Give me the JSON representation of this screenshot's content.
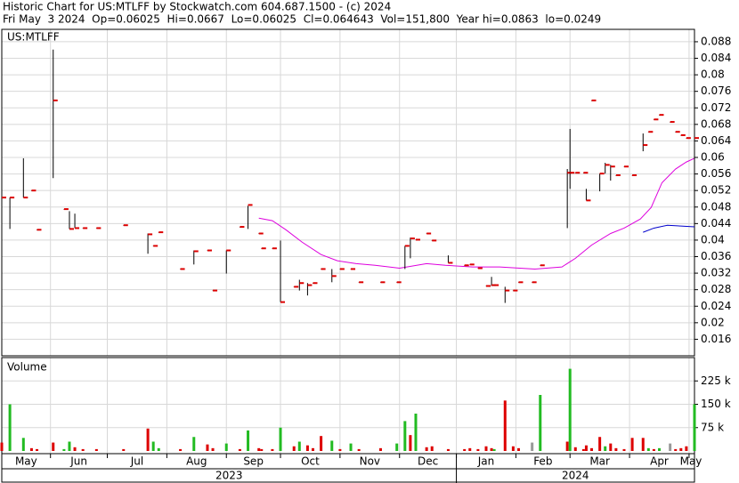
{
  "chart_data": {
    "type": "ohlc",
    "title": "Historic Chart for US:MTLFF by Stockwatch.com 604.687.1500 - (c) 2024",
    "subtitle": "Fri May  3 2024  Op=0.06025  Hi=0.0667  Lo=0.06025  Cl=0.064643  Vol=151,800  Year hi=0.0863  lo=0.0249",
    "symbol_label": "US:MTLFF",
    "volume_label": "Volume",
    "xlim": [
      0,
      256
    ],
    "xticks": [
      {
        "value": 0,
        "label": "May"
      },
      {
        "value": 18,
        "label": "Jun"
      },
      {
        "value": 39,
        "label": "Jul"
      },
      {
        "value": 61,
        "label": "Aug"
      },
      {
        "value": 83,
        "label": "Sep"
      },
      {
        "value": 103,
        "label": "Oct"
      },
      {
        "value": 125,
        "label": "Nov"
      },
      {
        "value": 147,
        "label": "Dec"
      },
      {
        "value": 168,
        "label": "Jan"
      },
      {
        "value": 190,
        "label": "Feb"
      },
      {
        "value": 210,
        "label": "Mar"
      },
      {
        "value": 232,
        "label": "Apr"
      },
      {
        "value": 254,
        "label": "May"
      }
    ],
    "years": [
      {
        "value": 0,
        "label": "2023"
      },
      {
        "value": 168,
        "label": "2024"
      }
    ],
    "ylim": [
      0.012,
      0.091
    ],
    "yticks": [
      0.016,
      0.02,
      0.024,
      0.028,
      0.032,
      0.036,
      0.04,
      0.044,
      0.048,
      0.052,
      0.056,
      0.06,
      0.064,
      0.068,
      0.072,
      0.076,
      0.08,
      0.084,
      0.088
    ],
    "grid": true,
    "range_color": "#000000",
    "close_color": "#dd0000",
    "x": [
      0,
      3,
      8,
      11,
      13,
      19,
      23,
      25,
      27,
      30,
      35,
      45,
      54,
      56,
      58,
      66,
      71,
      76,
      78,
      83,
      88,
      91,
      95,
      96,
      100,
      103,
      108,
      110,
      113,
      115,
      118,
      122,
      125,
      129,
      132,
      140,
      146,
      149,
      151,
      153,
      157,
      159,
      165,
      171,
      173,
      176,
      179,
      181,
      182,
      186,
      189,
      191,
      196,
      199,
      209,
      210,
      212,
      215,
      216,
      218,
      221,
      223,
      225,
      227,
      230,
      233,
      237,
      239,
      241,
      243,
      247,
      249,
      251,
      253,
      256
    ],
    "high": [
      0.0583,
      0.0503,
      0.0598,
      0.052,
      0.0425,
      0.0861,
      0.0475,
      0.047,
      0.0464,
      0.0429,
      0.0429,
      0.0436,
      0.0416,
      0.0386,
      0.0419,
      0.033,
      0.0375,
      0.0375,
      0.0278,
      0.0375,
      0.0432,
      0.0483,
      0.0416,
      0.038,
      0.038,
      0.0399,
      0.0287,
      0.0304,
      0.0296,
      0.0296,
      0.033,
      0.033,
      0.033,
      0.033,
      0.0298,
      0.0298,
      0.0298,
      0.0386,
      0.0406,
      0.0401,
      0.0416,
      0.0399,
      0.0363,
      0.0339,
      0.0341,
      0.0332,
      0.0289,
      0.0311,
      0.0291,
      0.0287,
      0.0278,
      0.0298,
      0.0298,
      0.0339,
      0.0572,
      0.0669,
      0.0563,
      0.0563,
      0.0524,
      0.0738,
      0.0561,
      0.0587,
      0.0582,
      0.0557,
      0.0578,
      0.0557,
      0.0658,
      0.0662,
      0.0692,
      0.0703,
      0.0686,
      0.0662,
      0.0654,
      0.0647,
      0.0662
    ],
    "low": [
      0.0496,
      0.0427,
      0.0503,
      0.052,
      0.0425,
      0.055,
      0.0475,
      0.0427,
      0.0429,
      0.0429,
      0.0429,
      0.0436,
      0.0367,
      0.0386,
      0.0419,
      0.033,
      0.0341,
      0.0375,
      0.0278,
      0.0319,
      0.0432,
      0.0427,
      0.0416,
      0.038,
      0.038,
      0.025,
      0.0287,
      0.0278,
      0.0266,
      0.0296,
      0.033,
      0.0298,
      0.033,
      0.033,
      0.0298,
      0.0298,
      0.0298,
      0.033,
      0.0356,
      0.0401,
      0.0416,
      0.0399,
      0.0345,
      0.0339,
      0.0341,
      0.0332,
      0.0289,
      0.0289,
      0.0291,
      0.0248,
      0.0278,
      0.0298,
      0.0298,
      0.0339,
      0.0429,
      0.0524,
      0.0563,
      0.0563,
      0.0496,
      0.0738,
      0.0518,
      0.0561,
      0.0544,
      0.0557,
      0.0578,
      0.0557,
      0.0615,
      0.0662,
      0.0692,
      0.0703,
      0.0686,
      0.0662,
      0.0654,
      0.0647,
      0.0593
    ],
    "close": [
      0.0503,
      0.0503,
      0.0503,
      0.052,
      0.0425,
      0.0738,
      0.0475,
      0.0427,
      0.0429,
      0.0429,
      0.0429,
      0.0436,
      0.0414,
      0.0386,
      0.0419,
      0.033,
      0.0373,
      0.0375,
      0.0278,
      0.0375,
      0.0432,
      0.0485,
      0.0416,
      0.038,
      0.038,
      0.025,
      0.0287,
      0.0296,
      0.0291,
      0.0296,
      0.033,
      0.0313,
      0.033,
      0.033,
      0.0298,
      0.0298,
      0.0298,
      0.0386,
      0.0404,
      0.0401,
      0.0416,
      0.0399,
      0.0345,
      0.0339,
      0.0341,
      0.0332,
      0.0289,
      0.0291,
      0.0291,
      0.0278,
      0.0278,
      0.0298,
      0.0298,
      0.0339,
      0.0563,
      0.0563,
      0.0563,
      0.0563,
      0.0496,
      0.0738,
      0.0561,
      0.0582,
      0.0578,
      0.0557,
      0.0578,
      0.0557,
      0.063,
      0.0662,
      0.0692,
      0.0703,
      0.0686,
      0.0662,
      0.0654,
      0.0647,
      0.0647
    ],
    "moving_averages": [
      {
        "color": "#dd00dd",
        "x": [
          95,
          100,
          105,
          111,
          118,
          124,
          131,
          138,
          147,
          157,
          164,
          174,
          184,
          197,
          207,
          212,
          218,
          225,
          230,
          236,
          240,
          244,
          249,
          253,
          256
        ],
        "values": [
          0.0453,
          0.0447,
          0.0425,
          0.0395,
          0.0365,
          0.035,
          0.0343,
          0.0339,
          0.0332,
          0.0343,
          0.0339,
          0.0335,
          0.0335,
          0.033,
          0.0335,
          0.0356,
          0.0388,
          0.0416,
          0.0429,
          0.0451,
          0.0479,
          0.0539,
          0.0572,
          0.0589,
          0.0598
        ]
      },
      {
        "color": "#0000cc",
        "x": [
          237,
          241,
          246,
          251,
          256
        ],
        "values": [
          0.0419,
          0.0429,
          0.0436,
          0.0434,
          0.0432
        ]
      }
    ],
    "volume": [
      27000,
      150000,
      42000,
      9000,
      6000,
      27000,
      6000,
      30000,
      12000,
      6000,
      6000,
      6000,
      72000,
      30000,
      9000,
      6000,
      45000,
      21000,
      9000,
      24000,
      6000,
      66000,
      9000,
      6000,
      6000,
      75000,
      15000,
      30000,
      18000,
      9000,
      48000,
      33000,
      6000,
      24000,
      6000,
      9000,
      24000,
      96000,
      51000,
      120000,
      12000,
      15000,
      6000,
      6000,
      9000,
      6000,
      15000,
      9000,
      6000,
      162000,
      15000,
      9000,
      27000,
      180000,
      30000,
      264000,
      12000,
      6000,
      18000,
      9000,
      45000,
      15000,
      24000,
      9000,
      6000,
      42000,
      42000,
      9000,
      6000,
      9000,
      24000,
      6000,
      9000,
      15000,
      150000
    ],
    "volume_colors": [
      "#dd0000",
      "#22bb22",
      "#22bb22",
      "#dd0000",
      "#dd0000",
      "#dd0000",
      "#22bb22",
      "#22bb22",
      "#dd0000",
      "#dd0000",
      "#dd0000",
      "#dd0000",
      "#dd0000",
      "#22bb22",
      "#22bb22",
      "#dd0000",
      "#22bb22",
      "#dd0000",
      "#dd0000",
      "#22bb22",
      "#dd0000",
      "#22bb22",
      "#dd0000",
      "#dd0000",
      "#dd0000",
      "#22bb22",
      "#dd0000",
      "#22bb22",
      "#dd0000",
      "#dd0000",
      "#dd0000",
      "#22bb22",
      "#dd0000",
      "#22bb22",
      "#dd0000",
      "#dd0000",
      "#22bb22",
      "#22bb22",
      "#dd0000",
      "#22bb22",
      "#dd0000",
      "#dd0000",
      "#dd0000",
      "#dd0000",
      "#dd0000",
      "#dd0000",
      "#dd0000",
      "#dd0000",
      "#22bb22",
      "#dd0000",
      "#dd0000",
      "#dd0000",
      "#999999",
      "#22bb22",
      "#dd0000",
      "#22bb22",
      "#dd0000",
      "#dd0000",
      "#dd0000",
      "#dd0000",
      "#dd0000",
      "#22bb22",
      "#dd0000",
      "#dd0000",
      "#dd0000",
      "#dd0000",
      "#dd0000",
      "#22bb22",
      "#dd0000",
      "#22bb22",
      "#999999",
      "#dd0000",
      "#dd0000",
      "#dd0000",
      "#22bb22"
    ],
    "vlim": [
      0,
      300000
    ],
    "vticks": [
      {
        "value": 75000,
        "label": "75 k"
      },
      {
        "value": 150000,
        "label": "150 k"
      },
      {
        "value": 225000,
        "label": "225 k"
      }
    ]
  }
}
